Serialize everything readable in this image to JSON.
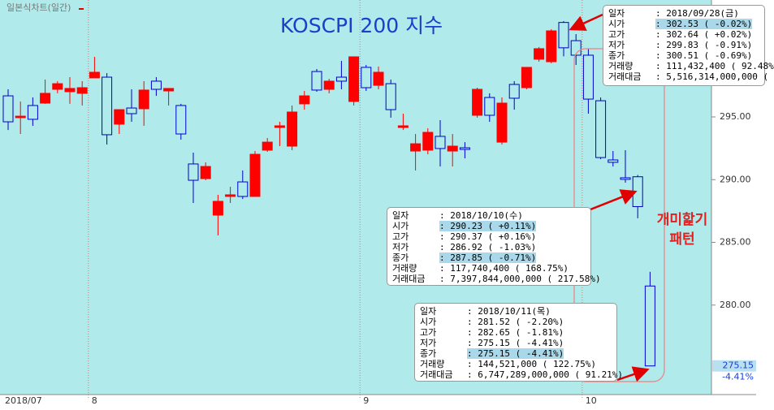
{
  "chart_data": {
    "type": "candlestick",
    "chart_label": "일본식차트(일간)",
    "title": "KOSCPI 200 지수",
    "annotation": [
      "개미핥기",
      "패턴"
    ],
    "categories": [
      "2018/07",
      null,
      null,
      null,
      null,
      null,
      null,
      "8",
      null,
      null,
      null,
      null,
      null,
      null,
      null,
      null,
      null,
      null,
      null,
      null,
      null,
      null,
      null,
      null,
      null,
      null,
      null,
      null,
      null,
      "9",
      null,
      null,
      null,
      null,
      null,
      null,
      null,
      null,
      null,
      null,
      null,
      null,
      null,
      null,
      null,
      null,
      null,
      "10",
      null,
      null,
      null,
      null,
      null
    ],
    "open": [
      296.68,
      294.94,
      295.91,
      296.1,
      297.2,
      297.01,
      296.88,
      298.11,
      298.17,
      294.42,
      295.71,
      295.65,
      297.85,
      297.07,
      295.91,
      291.25,
      290.08,
      287.17,
      288.66,
      289.82,
      288.66,
      292.35,
      294.16,
      292.67,
      296.04,
      298.62,
      297.2,
      298.17,
      296.23,
      298.95,
      297.52,
      297.65,
      294.16,
      292.28,
      292.35,
      293.45,
      292.28,
      292.54,
      295.13,
      296.55,
      292.99,
      297.59,
      297.33,
      299.6,
      299.4,
      302.53,
      301.08,
      299.92,
      296.29,
      291.57,
      290.15,
      290.23,
      281.52
    ],
    "high": [
      297.2,
      296.23,
      296.55,
      297.98,
      297.85,
      298.17,
      297.85,
      299.79,
      298.49,
      295.58,
      297.2,
      297.85,
      298.17,
      297.27,
      296.04,
      292.15,
      291.38,
      288.79,
      289.43,
      290.73,
      292.28,
      293.32,
      294.61,
      295.91,
      297.07,
      298.82,
      298.04,
      299.47,
      299.79,
      299.14,
      299.01,
      297.98,
      295.26,
      293.64,
      294.09,
      294.74,
      293.64,
      292.99,
      297.33,
      296.88,
      296.55,
      297.85,
      298.95,
      300.57,
      301.99,
      302.64,
      301.6,
      300.44,
      296.55,
      292.28,
      292.35,
      290.37,
      282.65
    ],
    "low": [
      293.96,
      293.64,
      294.29,
      296.04,
      296.88,
      296.04,
      295.91,
      298.11,
      292.8,
      293.64,
      294.61,
      294.29,
      296.68,
      295.91,
      293.19,
      288.14,
      289.95,
      285.55,
      288.14,
      288.46,
      288.66,
      292.22,
      292.67,
      292.35,
      295.58,
      297.01,
      296.88,
      297.2,
      295.91,
      297.07,
      297.2,
      294.94,
      293.96,
      290.73,
      292.02,
      291.05,
      291.05,
      291.7,
      294.94,
      294.61,
      292.8,
      295.58,
      297.2,
      299.4,
      299.27,
      299.83,
      299.14,
      295.26,
      291.63,
      291.05,
      289.76,
      286.92,
      275.15
    ],
    "close": [
      294.61,
      295.06,
      294.81,
      296.88,
      297.65,
      297.27,
      297.33,
      298.56,
      293.58,
      295.58,
      295.26,
      297.14,
      297.2,
      297.27,
      293.64,
      289.95,
      291.05,
      288.27,
      288.79,
      288.66,
      292.02,
      292.99,
      294.29,
      295.39,
      296.68,
      297.14,
      297.85,
      297.85,
      299.79,
      297.33,
      298.56,
      295.58,
      294.29,
      292.86,
      293.77,
      292.48,
      292.67,
      292.41,
      297.2,
      295.13,
      296.1,
      296.49,
      298.95,
      300.44,
      301.86,
      300.51,
      299.92,
      296.42,
      291.76,
      291.38,
      290.02,
      287.85,
      275.15
    ],
    "up_color": "#ff0000",
    "down_color": "#0000cc",
    "ylim": [
      272.93,
      304.32
    ],
    "yticks": [
      {
        "value": 280,
        "label": "280.00"
      },
      {
        "value": 285,
        "label": "285.00"
      },
      {
        "value": 290,
        "label": "290.00"
      },
      {
        "value": 295,
        "label": "295.00"
      }
    ],
    "last_price": {
      "value": 275.15,
      "label": "275.15"
    },
    "last_change": "-4.41%",
    "info_boxes": [
      {
        "rows": [
          [
            "일자",
            ": 2018/09/28(금)"
          ],
          [
            "시가",
            ": 302.53 ( -0.02%)"
          ],
          [
            "고가",
            ": 302.64 ( +0.02%)"
          ],
          [
            "저가",
            ": 299.83 ( -0.91%)"
          ],
          [
            "종가",
            ": 300.51 ( -0.69%)"
          ],
          [
            "거래량",
            ": 111,432,400 ( 92.48%"
          ],
          [
            "거래대금",
            ": 5,516,314,000,000 ("
          ]
        ],
        "highlight_rows": [
          1
        ]
      },
      {
        "rows": [
          [
            "일자",
            ": 2018/10/10(수)"
          ],
          [
            "시가",
            ": 290.23 ( +0.11%)"
          ],
          [
            "고가",
            ": 290.37 ( +0.16%)"
          ],
          [
            "저가",
            ": 286.92 ( -1.03%)"
          ],
          [
            "종가",
            ": 287.85 ( -0.71%)"
          ],
          [
            "거래량",
            ": 117,740,400 ( 168.75%)"
          ],
          [
            "거래대금",
            ": 7,397,844,000,000 ( 217.58%)"
          ]
        ],
        "highlight_rows": [
          1,
          4
        ]
      },
      {
        "rows": [
          [
            "일자",
            ": 2018/10/11(목)"
          ],
          [
            "시가",
            ": 281.52 ( -2.20%)"
          ],
          [
            "고가",
            ": 282.65 ( -1.81%)"
          ],
          [
            "저가",
            ": 275.15 ( -4.41%)"
          ],
          [
            "종가",
            ": 275.15 ( -4.41%)"
          ],
          [
            "거래량",
            ": 144,521,000 ( 122.75%)"
          ],
          [
            "거래대금",
            ": 6,747,289,000,000 ( 91.21%)"
          ]
        ],
        "highlight_rows": [
          4
        ]
      }
    ]
  }
}
